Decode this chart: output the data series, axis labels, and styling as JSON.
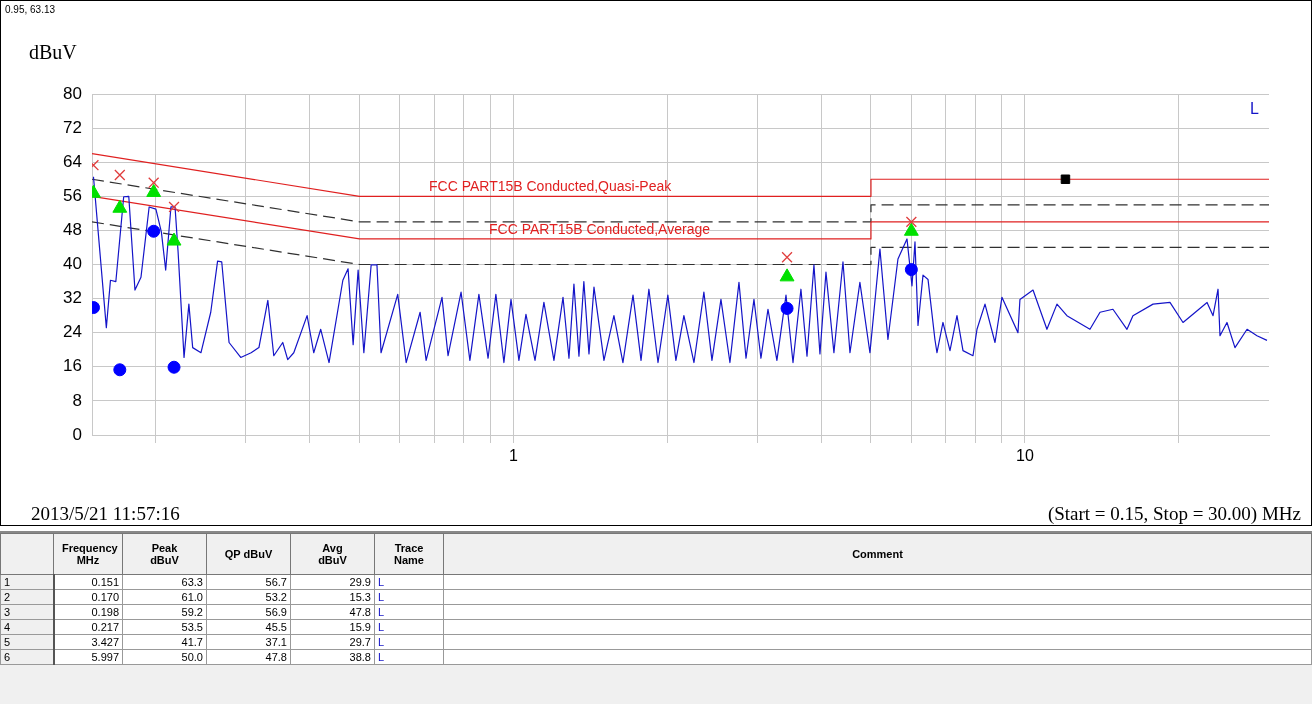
{
  "chart_data": {
    "type": "line",
    "ylabel": "dBuV",
    "log": "x",
    "grid": true,
    "xlim": [
      0.15,
      30
    ],
    "ylim": [
      0,
      80
    ],
    "xticks": [
      {
        "value": 0.2,
        "label": null
      },
      {
        "value": 0.3,
        "label": null
      },
      {
        "value": 0.4,
        "label": null
      },
      {
        "value": 0.5,
        "label": null
      },
      {
        "value": 0.6,
        "label": null
      },
      {
        "value": 0.7,
        "label": null
      },
      {
        "value": 0.8,
        "label": null
      },
      {
        "value": 0.9,
        "label": null
      },
      1,
      {
        "value": 2,
        "label": null
      },
      {
        "value": 3,
        "label": null
      },
      {
        "value": 4,
        "label": null
      },
      {
        "value": 5,
        "label": null
      },
      {
        "value": 6,
        "label": null
      },
      {
        "value": 7,
        "label": null
      },
      {
        "value": 8,
        "label": null
      },
      {
        "value": 9,
        "label": null
      },
      10,
      {
        "value": 20,
        "label": null
      }
    ],
    "yticks": [
      0,
      8,
      16,
      24,
      32,
      40,
      48,
      56,
      64,
      72,
      80
    ],
    "annotations": [
      "0.95, 63.13",
      "2013/5/21 11:57:16",
      "(Start = 0.15, Stop = 30.00) MHz",
      "Frequency MHz",
      "Peak dBuV",
      "QP dBuV",
      "Avg dBuV",
      "Trace Name",
      "Comment",
      "1",
      "0.151",
      "63.3",
      "56.7",
      "29.9",
      "2",
      "0.170",
      "61.0",
      "53.2",
      "15.3",
      "3",
      "0.198",
      "59.2",
      "56.9",
      "47.8",
      "4",
      "0.217",
      "53.5",
      "45.5",
      "15.9",
      "5",
      "3.427",
      "41.7",
      "37.1",
      "29.7",
      "6",
      "5.997",
      "50.0",
      "47.8",
      "38.8"
    ],
    "series": [
      {
        "name": "L",
        "color": "#1414c8",
        "marker": "none",
        "line_style": "solid",
        "x": [
          0.151,
          0.16,
          0.163,
          0.167,
          0.173,
          0.177,
          0.182,
          0.187,
          0.194,
          0.2,
          0.205,
          0.209,
          0.214,
          0.218,
          0.221,
          0.227,
          0.232,
          0.236,
          0.245,
          0.256,
          0.264,
          0.269,
          0.278,
          0.293,
          0.307,
          0.318,
          0.331,
          0.34,
          0.354,
          0.362,
          0.372,
          0.395,
          0.407,
          0.42,
          0.436,
          0.464,
          0.475,
          0.486,
          0.497,
          0.51,
          0.527,
          0.541,
          0.551,
          0.594,
          0.617,
          0.657,
          0.675,
          0.725,
          0.745,
          0.79,
          0.822,
          0.856,
          0.892,
          0.924,
          0.958,
          0.989,
          1.025,
          1.058,
          1.102,
          1.147,
          1.2,
          1.25,
          1.284,
          1.313,
          1.343,
          1.373,
          1.405,
          1.437,
          1.503,
          1.572,
          1.637,
          1.713,
          1.776,
          1.84,
          1.917,
          2.004,
          2.078,
          2.154,
          2.254,
          2.357,
          2.444,
          2.545,
          2.65,
          2.76,
          2.849,
          2.953,
          3.047,
          3.145,
          3.274,
          3.411,
          3.52,
          3.648,
          3.749,
          3.868,
          3.974,
          4.083,
          4.232,
          4.408,
          4.549,
          4.757,
          4.977,
          5.206,
          5.397,
          5.646,
          5.88,
          6.014,
          6.096,
          6.179,
          6.32,
          6.464,
          6.668,
          6.73,
          6.914,
          7.136,
          7.364,
          7.566,
          7.914,
          8.058,
          8.354,
          8.739,
          9.016,
          9.69,
          9.777,
          10.37,
          11.04,
          11.55,
          12.08,
          13.4,
          14.02,
          14.86,
          15.83,
          16.26,
          17.8,
          19.21,
          20.37,
          22.7,
          23.32,
          23.85,
          24.06,
          24.83,
          25.74,
          27.18,
          28.42,
          29.73
        ],
        "values": [
          60.6,
          25.2,
          36.3,
          36,
          55.9,
          56,
          34,
          37,
          53.5,
          53,
          47.6,
          38.7,
          53.5,
          53.5,
          43,
          18.2,
          30.7,
          20.5,
          19.3,
          28.8,
          40.8,
          40.6,
          21.7,
          18.2,
          19.3,
          20.5,
          31.6,
          18.6,
          21.7,
          17.7,
          19.3,
          28,
          19.3,
          24.8,
          17,
          36.3,
          39,
          21.2,
          38.7,
          19.3,
          39.9,
          39.9,
          19.3,
          33,
          17,
          28.8,
          17.5,
          32.3,
          18.6,
          33.5,
          17.5,
          33,
          18,
          33,
          17,
          31.8,
          17.5,
          28.3,
          17.5,
          31.1,
          17.5,
          32.3,
          18,
          35.4,
          18.5,
          36,
          19,
          34.7,
          17.5,
          28,
          17,
          32.8,
          17.5,
          34.2,
          17,
          32.8,
          17.5,
          28,
          17,
          33.5,
          17.5,
          31.8,
          17,
          35.8,
          18,
          31.8,
          18,
          29.5,
          17.5,
          32.8,
          17,
          34.2,
          18.5,
          39.9,
          19,
          38.2,
          19.3,
          40.6,
          19.3,
          35.8,
          19.3,
          43.6,
          22.4,
          41.3,
          46,
          35,
          45.3,
          25.7,
          37.5,
          36.5,
          22.4,
          19.3,
          26.4,
          19.8,
          28,
          19.8,
          18.6,
          24.8,
          30.7,
          21.7,
          32.3,
          24,
          31.8,
          34,
          24.8,
          30.7,
          28,
          24.8,
          28.8,
          29.5,
          24.8,
          28,
          30.7,
          31.1,
          26.4,
          31.1,
          28,
          34.2,
          23.3,
          26.4,
          20.5,
          24.8,
          23.3,
          22.2
        ]
      },
      {
        "name": "FCC PART15B Conducted,Quasi-Peak",
        "type": "line",
        "color": "#e02020",
        "marker": "none",
        "line_style": "solid",
        "x": [
          0.15,
          0.5,
          5,
          5,
          30
        ],
        "values": [
          66,
          56,
          56,
          60,
          60
        ]
      },
      {
        "name": "FCC PART15B Conducted,Average",
        "type": "line",
        "color": "#e02020",
        "marker": "none",
        "line_style": "solid",
        "x": [
          0.15,
          0.5,
          5,
          5,
          30
        ],
        "values": [
          56,
          46,
          46,
          50,
          50
        ]
      },
      {
        "type": "line",
        "color": "#303030",
        "marker": "none",
        "line_style": "dashed",
        "x": [
          0.15,
          0.5,
          5,
          5,
          30
        ],
        "values": [
          60,
          50,
          50,
          54,
          54
        ]
      },
      {
        "type": "line",
        "color": "#303030",
        "marker": "none",
        "line_style": "dashed",
        "x": [
          0.15,
          0.5,
          5,
          5,
          30
        ],
        "values": [
          50,
          40,
          40,
          44,
          44
        ]
      },
      {
        "type": "scatter",
        "color": "#e03c3c",
        "marker": "cross",
        "x": [
          0.151,
          0.17,
          0.198,
          0.217,
          3.427,
          5.997
        ],
        "values": [
          63.3,
          61.0,
          59.2,
          53.5,
          41.7,
          50.0
        ]
      },
      {
        "type": "scatter",
        "color": "#00e000",
        "marker": "triangle",
        "x": [
          0.151,
          0.17,
          0.198,
          0.217,
          3.427,
          5.997
        ],
        "values": [
          56.7,
          53.2,
          56.9,
          45.5,
          37.1,
          47.8
        ]
      },
      {
        "type": "scatter",
        "color": "#0000ff",
        "marker": "circle",
        "x": [
          0.151,
          0.17,
          0.198,
          0.217,
          3.427,
          5.997
        ],
        "values": [
          29.9,
          15.3,
          47.8,
          15.9,
          29.7,
          38.8
        ]
      },
      {
        "type": "scatter",
        "color": "#000000",
        "marker": "square",
        "x": [
          12
        ],
        "values": [
          60
        ]
      }
    ]
  }
}
